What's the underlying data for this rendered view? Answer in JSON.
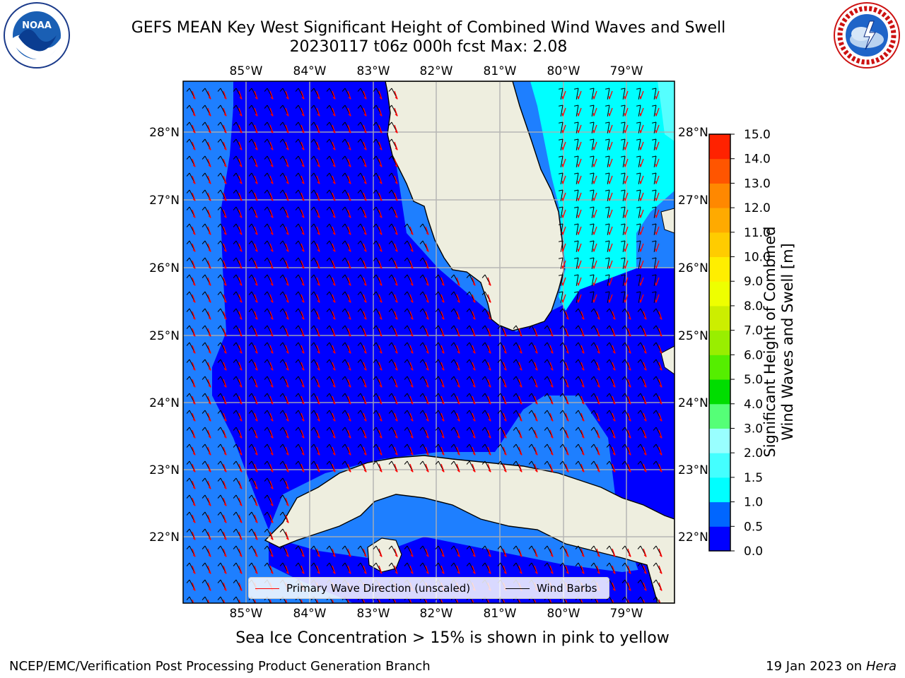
{
  "header": {
    "title_line1": "GEFS MEAN Key West Significant Height of Combined Wind Waves and Swell",
    "title_line2": "20230117 t06z 000h fcst   Max: 2.08"
  },
  "logos": {
    "left_text": "NOAA",
    "left_ring": "NATIONAL OCEANIC AND ATMOSPHERIC ADMINISTRATION · U.S. DEPARTMENT OF COMMERCE",
    "right_ring": "NATIONAL WEATHER SERVICE"
  },
  "chart_data": {
    "type": "heatmap",
    "title": "GEFS MEAN Key West Significant Height of Combined Wind Waves and Swell",
    "subtitle": "20230117 t06z 000h fcst   Max: 2.08",
    "max_value": 2.08,
    "lon_ticks": [
      "85°W",
      "84°W",
      "83°W",
      "82°W",
      "81°W",
      "80°W",
      "79°W"
    ],
    "lat_ticks": [
      "28°N",
      "27°N",
      "26°N",
      "25°N",
      "24°N",
      "23°N",
      "22°N"
    ],
    "lon_values": [
      -85,
      -84,
      -83,
      -82,
      -81,
      -80,
      -79
    ],
    "lat_values": [
      28,
      27,
      26,
      25,
      24,
      23,
      22
    ],
    "xlim": [
      -86.0,
      -78.3
    ],
    "ylim": [
      21.1,
      28.75
    ],
    "grid": true,
    "colorbar": {
      "label": "Significant Height of Combined Wind Waves and Swell [m]",
      "ticks": [
        "0.0",
        "0.5",
        "1.0",
        "1.5",
        "2.0",
        "3.0",
        "4.0",
        "5.0",
        "6.0",
        "7.0",
        "8.0",
        "9.0",
        "10.0",
        "11.0",
        "12.0",
        "13.0",
        "14.0",
        "15.0"
      ],
      "levels": [
        0,
        0.5,
        1,
        1.5,
        2,
        3,
        4,
        5,
        6,
        7,
        8,
        9,
        10,
        11,
        12,
        13,
        14,
        15
      ],
      "colors": [
        "#0000ff",
        "#0066ff",
        "#00ffff",
        "#44ffff",
        "#99ffff",
        "#55ff77",
        "#00dd00",
        "#55ee00",
        "#99ee00",
        "#ccee00",
        "#eeff00",
        "#ffee00",
        "#ffcc00",
        "#ffaa00",
        "#ff8800",
        "#ff5500",
        "#ff2200"
      ]
    },
    "fill_colors": {
      "0.0-0.5": "#0000ff",
      "0.5-1.0": "#1e7fff",
      "1.0-1.5": "#00ffff",
      "1.5-2.0": "#44ffff",
      "land": "#eeeedf"
    },
    "legend_entries": [
      {
        "label": "Primary Wave Direction (unscaled)",
        "color": "#ff0000"
      },
      {
        "label": "Wind Barbs",
        "color": "#000000"
      }
    ],
    "legend_position": "bottom-center"
  },
  "note": "Sea Ice Concentration > 15% is shown in pink to yellow",
  "footer": {
    "left": "NCEP/EMC/Verification Post Processing Product Generation Branch",
    "right_prefix": "19 Jan 2023 on ",
    "right_host": "Hera"
  }
}
